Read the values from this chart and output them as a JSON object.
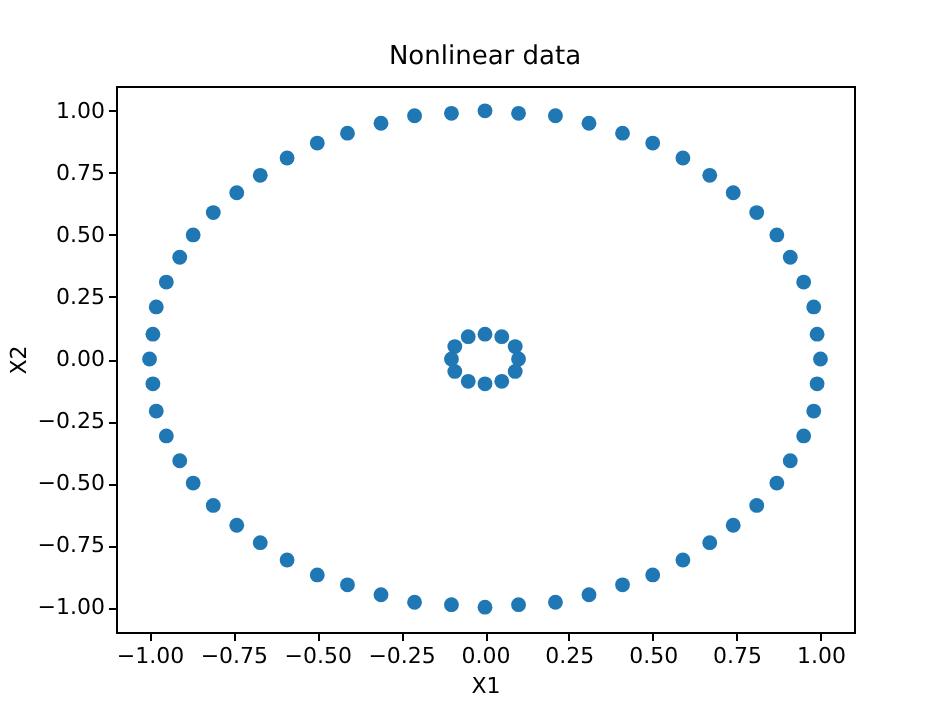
{
  "chart_data": {
    "type": "scatter",
    "title": "Nonlinear data",
    "xlabel": "X1",
    "ylabel": "X2",
    "marker": "circle",
    "xlim": [
      -1.1,
      1.1
    ],
    "ylim": [
      -1.1,
      1.1
    ],
    "xticks": [
      {
        "value": -1,
        "label": "−1.00"
      },
      {
        "value": -0.75,
        "label": "−0.75"
      },
      {
        "value": -0.5,
        "label": "−0.50"
      },
      {
        "value": -0.25,
        "label": "−0.25"
      },
      {
        "value": 0,
        "label": "0.00"
      },
      {
        "value": 0.25,
        "label": "0.25"
      },
      {
        "value": 0.5,
        "label": "0.50"
      },
      {
        "value": 0.75,
        "label": "0.75"
      },
      {
        "value": 1,
        "label": "1.00"
      }
    ],
    "yticks": [
      {
        "value": -1,
        "label": "−1.00"
      },
      {
        "value": -0.75,
        "label": "−0.75"
      },
      {
        "value": -0.5,
        "label": "−0.50"
      },
      {
        "value": -0.25,
        "label": "−0.25"
      },
      {
        "value": 0,
        "label": "0.00"
      },
      {
        "value": 0.25,
        "label": "0.25"
      },
      {
        "value": 0.5,
        "label": "0.50"
      },
      {
        "value": 0.75,
        "label": "0.75"
      },
      {
        "value": 1,
        "label": "1.00"
      }
    ],
    "series": [
      {
        "color": "#1f77b4",
        "x": [
          1,
          0.99,
          0.98,
          0.95,
          0.91,
          0.87,
          0.81,
          0.74,
          0.67,
          0.59,
          0.5,
          0.41,
          0.31,
          0.21,
          0.1,
          0,
          -0.1,
          -0.21,
          -0.31,
          -0.41,
          -0.5,
          -0.59,
          -0.67,
          -0.74,
          -0.81,
          -0.87,
          -0.91,
          -0.95,
          -0.98,
          -0.99,
          -1,
          -0.99,
          -0.98,
          -0.95,
          -0.91,
          -0.87,
          -0.81,
          -0.74,
          -0.67,
          -0.59,
          -0.5,
          -0.41,
          -0.31,
          -0.21,
          -0.1,
          0,
          0.1,
          0.21,
          0.31,
          0.41,
          0.5,
          0.59,
          0.67,
          0.74,
          0.81,
          0.87,
          0.91,
          0.95,
          0.98,
          0.99,
          0.1,
          0.09,
          0.05,
          0,
          -0.05,
          -0.09,
          -0.1,
          -0.09,
          -0.05,
          0,
          0.05,
          0.09
        ],
        "values": [
          0,
          0.1,
          0.21,
          0.31,
          0.41,
          0.5,
          0.59,
          0.67,
          0.74,
          0.81,
          0.87,
          0.91,
          0.95,
          0.98,
          0.99,
          1,
          0.99,
          0.98,
          0.95,
          0.91,
          0.87,
          0.81,
          0.74,
          0.67,
          0.59,
          0.5,
          0.41,
          0.31,
          0.21,
          0.1,
          0,
          -0.1,
          -0.21,
          -0.31,
          -0.41,
          -0.5,
          -0.59,
          -0.67,
          -0.74,
          -0.81,
          -0.87,
          -0.91,
          -0.95,
          -0.98,
          -0.99,
          -1,
          -0.99,
          -0.98,
          -0.95,
          -0.91,
          -0.87,
          -0.81,
          -0.74,
          -0.67,
          -0.59,
          -0.5,
          -0.41,
          -0.31,
          -0.21,
          -0.1,
          0,
          0.05,
          0.09,
          0.1,
          0.09,
          0.05,
          0,
          -0.05,
          -0.09,
          -0.1,
          -0.09,
          -0.05
        ]
      }
    ]
  }
}
